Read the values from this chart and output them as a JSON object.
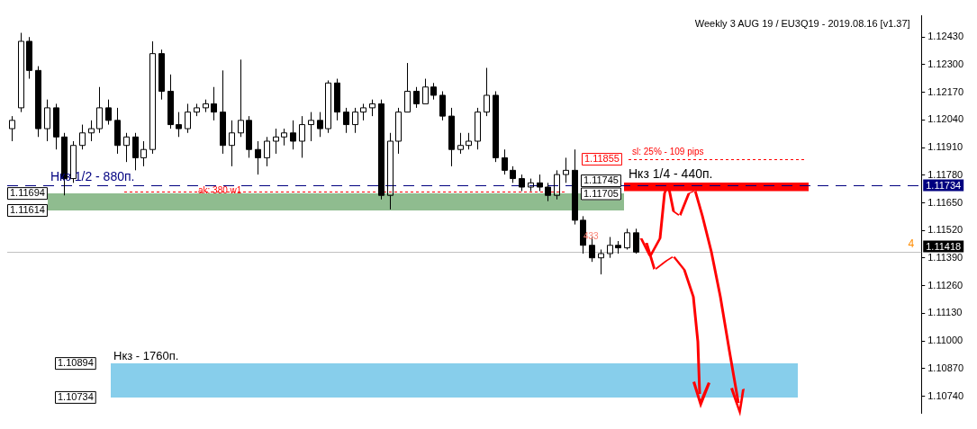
{
  "chart_data": {
    "type": "candlestick",
    "categories": [
      null,
      null,
      null,
      null,
      null,
      null,
      null,
      null,
      null,
      null,
      null,
      null,
      null,
      null,
      null,
      null,
      null,
      null,
      null,
      null,
      null,
      null,
      null,
      null,
      null,
      null,
      null,
      null,
      null,
      null,
      null,
      null,
      null,
      null,
      null,
      null,
      null,
      null,
      null,
      null,
      null,
      null,
      null,
      null,
      null,
      null,
      null,
      null,
      null,
      null,
      null,
      null,
      null,
      null,
      null,
      null,
      null,
      null,
      null,
      null,
      null,
      null,
      null,
      null,
      null,
      null,
      null,
      null,
      null,
      null,
      null,
      null,
      null,
      null,
      null,
      null,
      null,
      null,
      null,
      null,
      null,
      null,
      null,
      null,
      null,
      null,
      null,
      null,
      null,
      null,
      null,
      null,
      null,
      null,
      null,
      null,
      null,
      null,
      null,
      null,
      null,
      null,
      null,
      null
    ],
    "color": "#000000",
    "ohlc": [
      [
        1.11999,
        1.12058,
        1.1194,
        1.12038
      ],
      [
        1.12097,
        1.1245,
        1.12077,
        1.1241
      ],
      [
        1.1241,
        1.1243,
        1.12234,
        1.12273
      ],
      [
        1.12273,
        1.12293,
        1.1196,
        1.11999
      ],
      [
        1.11999,
        1.12136,
        1.1194,
        1.12097
      ],
      [
        1.12097,
        1.12116,
        1.11901,
        1.1196
      ],
      [
        1.1196,
        1.11979,
        1.11685,
        1.11764
      ],
      [
        1.11764,
        1.1194,
        1.11744,
        1.1192
      ],
      [
        1.1192,
        1.12018,
        1.11901,
        1.11979
      ],
      [
        1.11979,
        1.12038,
        1.1194,
        1.11999
      ],
      [
        1.11999,
        1.12195,
        1.11979,
        1.12097
      ],
      [
        1.12097,
        1.12136,
        1.12018,
        1.12038
      ],
      [
        1.12038,
        1.12097,
        1.11881,
        1.1192
      ],
      [
        1.1192,
        1.11979,
        1.11842,
        1.1196
      ],
      [
        1.1196,
        1.11979,
        1.11803,
        1.11862
      ],
      [
        1.11862,
        1.1194,
        1.11822,
        1.11901
      ],
      [
        1.11901,
        1.1241,
        1.11881,
        1.12352
      ],
      [
        1.12352,
        1.12371,
        1.12136,
        1.12175
      ],
      [
        1.12175,
        1.12254,
        1.11999,
        1.12018
      ],
      [
        1.12018,
        1.12077,
        1.1196,
        1.11999
      ],
      [
        1.11999,
        1.12116,
        1.11979,
        1.12077
      ],
      [
        1.12077,
        1.12116,
        1.12058,
        1.12097
      ],
      [
        1.12097,
        1.12136,
        1.12077,
        1.12116
      ],
      [
        1.12116,
        1.12195,
        1.12038,
        1.12077
      ],
      [
        1.12077,
        1.12273,
        1.11881,
        1.1192
      ],
      [
        1.1192,
        1.12038,
        1.11822,
        1.11979
      ],
      [
        1.11979,
        1.12324,
        1.1196,
        1.12038
      ],
      [
        1.12038,
        1.12058,
        1.11862,
        1.11901
      ],
      [
        1.11901,
        1.1194,
        1.11783,
        1.11862
      ],
      [
        1.11862,
        1.1196,
        1.11822,
        1.1194
      ],
      [
        1.1194,
        1.11999,
        1.11881,
        1.1196
      ],
      [
        1.1196,
        1.11999,
        1.1192,
        1.11979
      ],
      [
        1.11979,
        1.12038,
        1.11901,
        1.1194
      ],
      [
        1.1194,
        1.12058,
        1.11862,
        1.12018
      ],
      [
        1.12018,
        1.12077,
        1.1194,
        1.12038
      ],
      [
        1.12038,
        1.12077,
        1.1196,
        1.11999
      ],
      [
        1.11999,
        1.12226,
        1.11979,
        1.12214
      ],
      [
        1.12214,
        1.12234,
        1.12038,
        1.12077
      ],
      [
        1.12077,
        1.12097,
        1.11979,
        1.12018
      ],
      [
        1.12018,
        1.12097,
        1.11979,
        1.12077
      ],
      [
        1.12077,
        1.12116,
        1.12038,
        1.12097
      ],
      [
        1.12097,
        1.12136,
        1.12058,
        1.12116
      ],
      [
        1.12116,
        1.12136,
        1.11666,
        1.11685
      ],
      [
        1.11685,
        1.11979,
        1.11619,
        1.1194
      ],
      [
        1.1194,
        1.12097,
        1.11881,
        1.12077
      ],
      [
        1.12077,
        1.12308,
        1.12077,
        1.12175
      ],
      [
        1.12175,
        1.12195,
        1.12097,
        1.12116
      ],
      [
        1.12116,
        1.12234,
        1.12116,
        1.12195
      ],
      [
        1.12195,
        1.12214,
        1.12136,
        1.12156
      ],
      [
        1.12156,
        1.12175,
        1.12038,
        1.12058
      ],
      [
        1.12058,
        1.12097,
        1.11822,
        1.11901
      ],
      [
        1.11901,
        1.11979,
        1.11881,
        1.1192
      ],
      [
        1.1192,
        1.11979,
        1.11901,
        1.1194
      ],
      [
        1.1194,
        1.12097,
        1.11901,
        1.12077
      ],
      [
        1.12077,
        1.12285,
        1.12058,
        1.12156
      ],
      [
        1.12156,
        1.12175,
        1.11842,
        1.11862
      ],
      [
        1.11862,
        1.11901,
        1.11783,
        1.11803
      ],
      [
        1.11803,
        1.11822,
        1.11744,
        1.11764
      ],
      [
        1.11764,
        1.11783,
        1.11705,
        1.11724
      ],
      [
        1.11724,
        1.11764,
        1.11705,
        1.11744
      ],
      [
        1.11744,
        1.11783,
        1.11705,
        1.11724
      ],
      [
        1.11724,
        1.11744,
        1.11658,
        1.11685
      ],
      [
        1.11685,
        1.11803,
        1.11666,
        1.11783
      ],
      [
        1.11783,
        1.11862,
        1.11744,
        1.11803
      ],
      [
        1.11803,
        1.11901,
        1.11548,
        1.11568
      ],
      [
        1.11568,
        1.11587,
        1.11411,
        1.1145
      ],
      [
        1.1145,
        1.11489,
        1.11372,
        1.11391
      ],
      [
        1.11391,
        1.1143,
        1.11313,
        1.11411
      ],
      [
        1.11411,
        1.11489,
        1.11391,
        1.1145
      ],
      [
        1.1145,
        1.1147,
        1.11411,
        1.11438
      ],
      [
        1.11438,
        1.11528,
        1.1143,
        1.11509
      ],
      [
        1.11509,
        1.11528,
        1.11411,
        1.11418
      ],
      null,
      null,
      null,
      null,
      null,
      null,
      null,
      null,
      null,
      null,
      null,
      null,
      null,
      null,
      null,
      null,
      null,
      null,
      null,
      null,
      null,
      null,
      null,
      null,
      null,
      null,
      null,
      null,
      null,
      null,
      null,
      null
    ],
    "ylim": [
      1.1066,
      1.1253
    ],
    "yticks": [
      {
        "value": 1.1243,
        "label": "1.12430"
      },
      {
        "value": 1.123,
        "label": "1.12300"
      },
      {
        "value": 1.1217,
        "label": "1.12170"
      },
      {
        "value": 1.1204,
        "label": "1.12040"
      },
      {
        "value": 1.1191,
        "label": "1.11910"
      },
      {
        "value": 1.1178,
        "label": "1.11780"
      },
      {
        "value": 1.1165,
        "label": "1.11650"
      },
      {
        "value": 1.1152,
        "label": "1.11520"
      },
      {
        "value": 1.1139,
        "label": "1.11390"
      },
      {
        "value": 1.1126,
        "label": "1.11260"
      },
      {
        "value": 1.1113,
        "label": "1.11130"
      },
      {
        "value": 1.11,
        "label": "1.11000"
      },
      {
        "value": 1.1087,
        "label": "1.10870"
      },
      {
        "value": 1.1074,
        "label": "1.10740"
      }
    ],
    "tick_labels": "y",
    "grid": false,
    "legend": false,
    "bands": [
      {
        "axis": "y",
        "from": 1.11614,
        "to": 1.11694,
        "color": "#8fbc8f"
      },
      {
        "axis": "y",
        "from": 1.10734,
        "to": 1.10894,
        "color": "#87ceeb"
      },
      {
        "axis": "y",
        "from": 1.11705,
        "to": 1.11745,
        "color": "#ff0000"
      }
    ],
    "ref_lines": [
      {
        "axis": "y",
        "value": 1.11734,
        "label": "1.11734",
        "color": "#000080",
        "line_style": "dashed"
      },
      {
        "axis": "y",
        "value": 1.11418,
        "label": "1.11418",
        "color": "#c0c0c0",
        "line_style": "solid"
      },
      {
        "axis": "y",
        "value": 1.11855,
        "color": "#ff0000",
        "line_style": "dotted"
      },
      {
        "axis": "y",
        "value": 1.11705,
        "color": "#ff0000",
        "line_style": "dotted"
      }
    ],
    "annotations": [
      "Weekly 3 AUG 19 / EU3Q19 - 2019.08.16 [v1.37]",
      {
        "text": "Нкз 1/2 - 880п.",
        "y": 1.11734
      },
      {
        "text": "Нкз 1/4 - 440п.",
        "y": 1.11745
      },
      {
        "text": "Нкз - 1760п.",
        "y": 1.10894
      },
      "433",
      "4",
      "1.11694",
      "1.11614",
      "1.10894",
      "1.10734",
      "1.11855",
      "1.11745",
      "1.11705",
      "sl: 25% - 109 pips",
      "ak: 380 w1"
    ]
  }
}
